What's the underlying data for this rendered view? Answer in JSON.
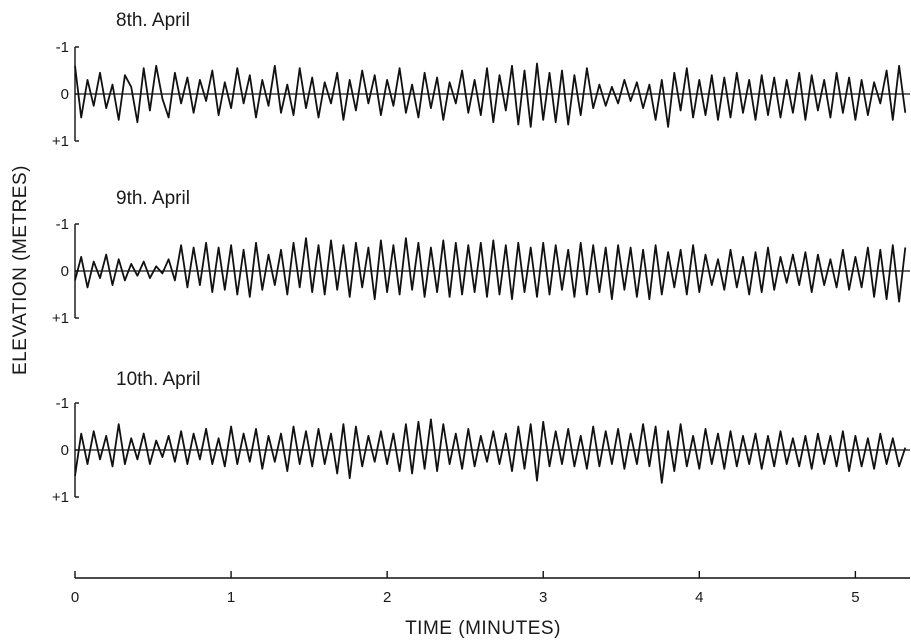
{
  "chart_data": {
    "type": "line",
    "xlabel": "TIME  (MINUTES)",
    "ylabel": "ELEVATION  (METRES)",
    "xlim": [
      0,
      5.35
    ],
    "x_ticks": [
      0,
      1,
      2,
      3,
      4,
      5
    ],
    "x_tick_labels": [
      "0",
      "1",
      "2",
      "3",
      "4",
      "5"
    ],
    "panels": [
      {
        "name": "8th. April",
        "ylim": [
          -1,
          1
        ],
        "y_ticks": [
          -1,
          0,
          1
        ],
        "y_tick_labels": [
          "-1",
          "0",
          "+1"
        ],
        "x": [
          0.0,
          0.04,
          0.08,
          0.12,
          0.16,
          0.2,
          0.24,
          0.28,
          0.32,
          0.36,
          0.4,
          0.44,
          0.48,
          0.52,
          0.56,
          0.6,
          0.64,
          0.68,
          0.72,
          0.76,
          0.8,
          0.84,
          0.88,
          0.92,
          0.96,
          1.0,
          1.04,
          1.08,
          1.12,
          1.16,
          1.2,
          1.24,
          1.28,
          1.32,
          1.36,
          1.4,
          1.44,
          1.48,
          1.52,
          1.56,
          1.6,
          1.64,
          1.68,
          1.72,
          1.76,
          1.8,
          1.84,
          1.88,
          1.92,
          1.96,
          2.0,
          2.04,
          2.08,
          2.12,
          2.16,
          2.2,
          2.24,
          2.28,
          2.32,
          2.36,
          2.4,
          2.44,
          2.48,
          2.52,
          2.56,
          2.6,
          2.64,
          2.68,
          2.72,
          2.76,
          2.8,
          2.84,
          2.88,
          2.92,
          2.96,
          3.0,
          3.04,
          3.08,
          3.12,
          3.16,
          3.2,
          3.24,
          3.28,
          3.32,
          3.36,
          3.4,
          3.44,
          3.48,
          3.52,
          3.56,
          3.6,
          3.64,
          3.68,
          3.72,
          3.76,
          3.8,
          3.84,
          3.88,
          3.92,
          3.96,
          4.0,
          4.04,
          4.08,
          4.12,
          4.16,
          4.2,
          4.24,
          4.28,
          4.32,
          4.36,
          4.4,
          4.44,
          4.48,
          4.52,
          4.56,
          4.6,
          4.64,
          4.68,
          4.72,
          4.76,
          4.8,
          4.84,
          4.88,
          4.92,
          4.96,
          5.0,
          5.04,
          5.08,
          5.12,
          5.16,
          5.2,
          5.24,
          5.28,
          5.32
        ],
        "values": [
          -0.6,
          0.5,
          -0.3,
          0.25,
          -0.45,
          0.3,
          -0.2,
          0.55,
          -0.4,
          -0.15,
          0.6,
          -0.55,
          0.35,
          -0.6,
          0.1,
          0.5,
          -0.45,
          0.2,
          -0.35,
          0.4,
          -0.3,
          0.15,
          -0.5,
          0.45,
          -0.25,
          0.3,
          -0.55,
          0.2,
          -0.4,
          0.5,
          -0.3,
          0.25,
          -0.6,
          0.4,
          -0.2,
          0.45,
          -0.55,
          0.3,
          -0.35,
          0.5,
          -0.25,
          0.2,
          -0.45,
          0.55,
          -0.3,
          0.35,
          -0.5,
          0.2,
          -0.4,
          0.45,
          -0.3,
          0.25,
          -0.55,
          0.4,
          -0.2,
          0.5,
          -0.45,
          0.3,
          -0.35,
          0.55,
          -0.25,
          0.2,
          -0.5,
          0.4,
          -0.3,
          0.45,
          -0.55,
          0.6,
          -0.4,
          0.35,
          -0.6,
          0.65,
          -0.5,
          0.7,
          -0.65,
          0.55,
          -0.45,
          0.6,
          -0.5,
          0.65,
          -0.4,
          0.45,
          -0.55,
          0.3,
          -0.2,
          0.25,
          -0.15,
          0.2,
          -0.3,
          0.15,
          -0.25,
          0.3,
          -0.2,
          0.55,
          -0.3,
          0.7,
          -0.45,
          0.35,
          -0.55,
          0.5,
          -0.3,
          0.45,
          -0.4,
          0.55,
          -0.35,
          0.5,
          -0.45,
          0.4,
          -0.3,
          0.55,
          -0.4,
          0.45,
          -0.35,
          0.5,
          -0.3,
          0.4,
          -0.45,
          0.55,
          -0.4,
          0.35,
          -0.3,
          0.5,
          -0.45,
          0.4,
          -0.35,
          0.55,
          -0.3,
          0.45,
          -0.25,
          0.2,
          -0.5,
          0.55,
          -0.6,
          0.4
        ]
      },
      {
        "name": "9th. April",
        "ylim": [
          -1,
          1
        ],
        "y_ticks": [
          -1,
          0,
          1
        ],
        "y_tick_labels": [
          "-1",
          "0",
          "+1"
        ],
        "x": [
          0.0,
          0.04,
          0.08,
          0.12,
          0.16,
          0.2,
          0.24,
          0.28,
          0.32,
          0.36,
          0.4,
          0.44,
          0.48,
          0.52,
          0.56,
          0.6,
          0.64,
          0.68,
          0.72,
          0.76,
          0.8,
          0.84,
          0.88,
          0.92,
          0.96,
          1.0,
          1.04,
          1.08,
          1.12,
          1.16,
          1.2,
          1.24,
          1.28,
          1.32,
          1.36,
          1.4,
          1.44,
          1.48,
          1.52,
          1.56,
          1.6,
          1.64,
          1.68,
          1.72,
          1.76,
          1.8,
          1.84,
          1.88,
          1.92,
          1.96,
          2.0,
          2.04,
          2.08,
          2.12,
          2.16,
          2.2,
          2.24,
          2.28,
          2.32,
          2.36,
          2.4,
          2.44,
          2.48,
          2.52,
          2.56,
          2.6,
          2.64,
          2.68,
          2.72,
          2.76,
          2.8,
          2.84,
          2.88,
          2.92,
          2.96,
          3.0,
          3.04,
          3.08,
          3.12,
          3.16,
          3.2,
          3.24,
          3.28,
          3.32,
          3.36,
          3.4,
          3.44,
          3.48,
          3.52,
          3.56,
          3.6,
          3.64,
          3.68,
          3.72,
          3.76,
          3.8,
          3.84,
          3.88,
          3.92,
          3.96,
          4.0,
          4.04,
          4.08,
          4.12,
          4.16,
          4.2,
          4.24,
          4.28,
          4.32,
          4.36,
          4.4,
          4.44,
          4.48,
          4.52,
          4.56,
          4.6,
          4.64,
          4.68,
          4.72,
          4.76,
          4.8,
          4.84,
          4.88,
          4.92,
          4.96,
          5.0,
          5.04,
          5.08,
          5.12,
          5.16,
          5.2,
          5.24,
          5.28,
          5.32
        ],
        "values": [
          0.2,
          -0.3,
          0.35,
          -0.2,
          0.15,
          -0.35,
          0.3,
          -0.25,
          0.2,
          -0.15,
          0.1,
          -0.2,
          0.15,
          -0.1,
          0.05,
          -0.25,
          0.2,
          -0.55,
          0.35,
          -0.5,
          0.3,
          -0.6,
          0.45,
          -0.5,
          0.4,
          -0.55,
          0.5,
          -0.45,
          0.55,
          -0.6,
          0.4,
          -0.35,
          0.3,
          -0.45,
          0.5,
          -0.6,
          0.35,
          -0.7,
          0.45,
          -0.55,
          0.5,
          -0.65,
          0.4,
          -0.55,
          0.55,
          -0.6,
          0.35,
          -0.5,
          0.6,
          -0.65,
          0.45,
          -0.55,
          0.5,
          -0.7,
          0.4,
          -0.6,
          0.55,
          -0.5,
          0.45,
          -0.65,
          0.55,
          -0.6,
          0.5,
          -0.55,
          0.45,
          -0.6,
          0.55,
          -0.65,
          0.5,
          -0.55,
          0.6,
          -0.6,
          0.45,
          -0.5,
          0.55,
          -0.6,
          0.5,
          -0.55,
          0.4,
          -0.45,
          0.55,
          -0.6,
          0.5,
          -0.55,
          0.45,
          -0.5,
          0.6,
          -0.55,
          0.4,
          -0.5,
          0.55,
          -0.45,
          0.6,
          -0.55,
          0.5,
          -0.4,
          0.35,
          -0.45,
          0.5,
          -0.55,
          0.45,
          -0.35,
          0.3,
          -0.25,
          0.4,
          -0.45,
          0.35,
          -0.3,
          0.5,
          -0.4,
          0.45,
          -0.5,
          0.4,
          -0.3,
          0.25,
          -0.35,
          0.3,
          -0.4,
          0.45,
          -0.35,
          0.3,
          -0.25,
          0.35,
          -0.45,
          0.4,
          -0.3,
          0.35,
          -0.5,
          0.55,
          -0.45,
          0.6,
          -0.55,
          0.65,
          -0.5
        ]
      },
      {
        "name": "10th. April",
        "ylim": [
          -1,
          1
        ],
        "y_ticks": [
          -1,
          0,
          1
        ],
        "y_tick_labels": [
          "-1",
          "0",
          "+1"
        ],
        "x": [
          0.0,
          0.04,
          0.08,
          0.12,
          0.16,
          0.2,
          0.24,
          0.28,
          0.32,
          0.36,
          0.4,
          0.44,
          0.48,
          0.52,
          0.56,
          0.6,
          0.64,
          0.68,
          0.72,
          0.76,
          0.8,
          0.84,
          0.88,
          0.92,
          0.96,
          1.0,
          1.04,
          1.08,
          1.12,
          1.16,
          1.2,
          1.24,
          1.28,
          1.32,
          1.36,
          1.4,
          1.44,
          1.48,
          1.52,
          1.56,
          1.6,
          1.64,
          1.68,
          1.72,
          1.76,
          1.8,
          1.84,
          1.88,
          1.92,
          1.96,
          2.0,
          2.04,
          2.08,
          2.12,
          2.16,
          2.2,
          2.24,
          2.28,
          2.32,
          2.36,
          2.4,
          2.44,
          2.48,
          2.52,
          2.56,
          2.6,
          2.64,
          2.68,
          2.72,
          2.76,
          2.8,
          2.84,
          2.88,
          2.92,
          2.96,
          3.0,
          3.04,
          3.08,
          3.12,
          3.16,
          3.2,
          3.24,
          3.28,
          3.32,
          3.36,
          3.4,
          3.44,
          3.48,
          3.52,
          3.56,
          3.6,
          3.64,
          3.68,
          3.72,
          3.76,
          3.8,
          3.84,
          3.88,
          3.92,
          3.96,
          4.0,
          4.04,
          4.08,
          4.12,
          4.16,
          4.2,
          4.24,
          4.28,
          4.32,
          4.36,
          4.4,
          4.44,
          4.48,
          4.52,
          4.56,
          4.6,
          4.64,
          4.68,
          4.72,
          4.76,
          4.8,
          4.84,
          4.88,
          4.92,
          4.96,
          5.0,
          5.04,
          5.08,
          5.12,
          5.16,
          5.2,
          5.24,
          5.28,
          5.32
        ],
        "values": [
          0.55,
          -0.35,
          0.3,
          -0.4,
          0.2,
          -0.3,
          0.35,
          -0.55,
          0.3,
          -0.25,
          0.2,
          -0.35,
          0.3,
          -0.2,
          0.15,
          -0.3,
          0.25,
          -0.4,
          0.3,
          -0.35,
          0.2,
          -0.45,
          0.3,
          -0.25,
          0.35,
          -0.5,
          0.3,
          -0.35,
          0.25,
          -0.45,
          0.4,
          -0.3,
          0.25,
          -0.35,
          0.45,
          -0.5,
          0.3,
          -0.4,
          0.35,
          -0.45,
          0.3,
          -0.35,
          0.5,
          -0.55,
          0.6,
          -0.5,
          0.35,
          -0.3,
          0.25,
          -0.4,
          0.3,
          -0.35,
          0.45,
          -0.55,
          0.5,
          -0.6,
          0.4,
          -0.65,
          0.45,
          -0.55,
          0.3,
          -0.35,
          0.4,
          -0.45,
          0.35,
          -0.3,
          0.25,
          -0.4,
          0.3,
          -0.35,
          0.45,
          -0.5,
          0.4,
          -0.55,
          0.65,
          -0.6,
          0.35,
          -0.4,
          0.3,
          -0.45,
          0.35,
          -0.3,
          0.4,
          -0.5,
          0.35,
          -0.4,
          0.3,
          -0.45,
          0.4,
          -0.35,
          0.3,
          -0.55,
          0.35,
          -0.5,
          0.7,
          -0.4,
          0.45,
          -0.55,
          0.35,
          -0.3,
          0.4,
          -0.45,
          0.3,
          -0.35,
          0.4,
          -0.4,
          0.35,
          -0.3,
          0.3,
          -0.35,
          0.4,
          -0.3,
          0.35,
          -0.4,
          0.3,
          -0.25,
          0.35,
          -0.3,
          0.4,
          -0.35,
          0.3,
          -0.3,
          0.35,
          -0.4,
          0.45,
          -0.3,
          0.35,
          -0.25,
          0.4,
          -0.35,
          0.3,
          -0.25,
          0.35,
          -0.05
        ]
      }
    ]
  }
}
